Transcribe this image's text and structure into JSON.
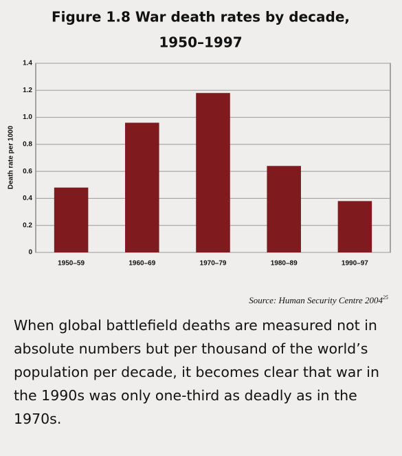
{
  "chart_data": {
    "type": "bar",
    "title": "Figure 1.8 War death rates by decade,",
    "title_line2": "1950–1997",
    "y_label": "Death rate per 1000",
    "categories": [
      "1950–59",
      "1960–69",
      "1970–79",
      "1980–89",
      "1990–97"
    ],
    "values": [
      0.48,
      0.96,
      1.18,
      0.64,
      0.38
    ],
    "color": "#7f1a1f",
    "ylim": [
      0,
      1.4
    ],
    "yticks": [
      0,
      0.2,
      0.4,
      0.6,
      0.8,
      {
        "value": 1,
        "label": "1.0"
      },
      1.2,
      1.4
    ],
    "grid": true,
    "source": "Source: Human Security Centre 2004",
    "source_note": "25",
    "caption": "When global battlefield deaths are measured not in absolute numbers but per thousand of the world’s population per decade, it becomes clear that war in the 1990s was only one-third as deadly as in the 1970s."
  }
}
